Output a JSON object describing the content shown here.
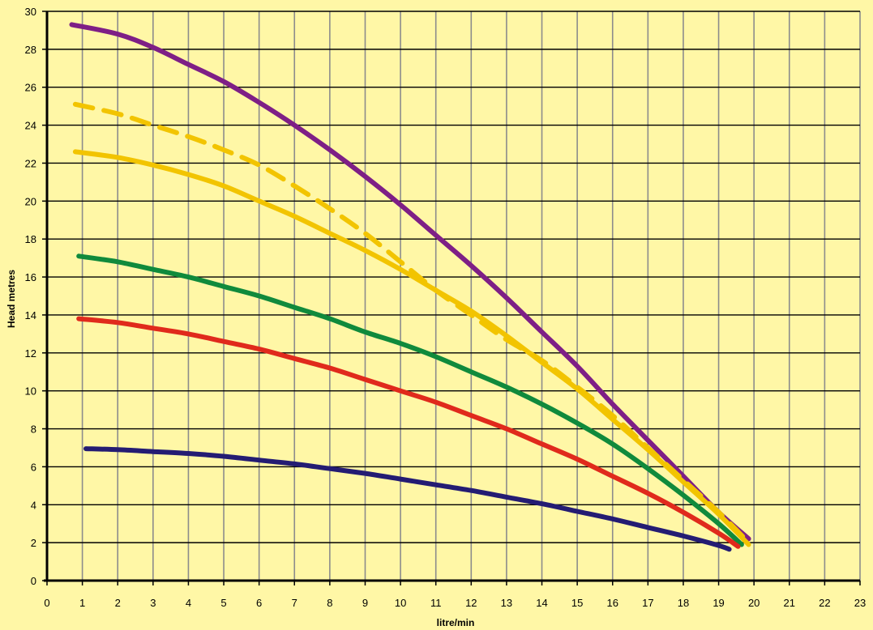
{
  "chart_data": {
    "type": "line",
    "title": "",
    "xlabel": "litre/min",
    "ylabel": "Head metres",
    "xlim": [
      0,
      23
    ],
    "ylim": [
      0,
      30
    ],
    "x_ticks": [
      0,
      1,
      2,
      3,
      4,
      5,
      6,
      7,
      8,
      9,
      10,
      11,
      12,
      13,
      14,
      15,
      16,
      17,
      18,
      19,
      20,
      21,
      22,
      23
    ],
    "y_ticks": [
      0,
      2,
      4,
      6,
      8,
      10,
      12,
      14,
      16,
      18,
      20,
      22,
      24,
      26,
      28,
      30
    ],
    "grid": true,
    "legend": "none",
    "colors": {
      "background": "#FFF7A6",
      "grid_vertical": "#8C8C8C",
      "grid_horizontal": "#000000"
    },
    "series": [
      {
        "color": "#7E1F86",
        "dash": false,
        "x": [
          0.7,
          2,
          3,
          4,
          5,
          6,
          7,
          8,
          9,
          10,
          11,
          12,
          13,
          14,
          15,
          16,
          17,
          18,
          19,
          19.85
        ],
        "y": [
          29.3,
          28.8,
          28.1,
          27.2,
          26.3,
          25.2,
          24.0,
          22.7,
          21.3,
          19.8,
          18.2,
          16.6,
          14.9,
          13.1,
          11.3,
          9.3,
          7.4,
          5.5,
          3.6,
          2.2
        ]
      },
      {
        "color": "#F2C400",
        "dash": true,
        "x": [
          0.8,
          2,
          3,
          4,
          5,
          6,
          7,
          8,
          9,
          10,
          11,
          12,
          13,
          14,
          15,
          16,
          17,
          18,
          19,
          19.85
        ],
        "y": [
          25.1,
          24.6,
          24.0,
          23.4,
          22.7,
          21.9,
          20.8,
          19.6,
          18.3,
          16.8,
          15.3,
          14.0,
          12.7,
          11.6,
          10.2,
          8.7,
          7.0,
          5.3,
          3.6,
          2.0
        ]
      },
      {
        "color": "#F2C400",
        "dash": false,
        "x": [
          0.8,
          2,
          3,
          4,
          5,
          6,
          7,
          8,
          9,
          10,
          11,
          12,
          13,
          14,
          15,
          16,
          17,
          18,
          19,
          19.85
        ],
        "y": [
          22.6,
          22.3,
          21.9,
          21.4,
          20.8,
          20.0,
          19.2,
          18.3,
          17.4,
          16.4,
          15.3,
          14.2,
          12.9,
          11.5,
          10.1,
          8.5,
          6.9,
          5.2,
          3.5,
          1.9
        ]
      },
      {
        "color": "#108A3C",
        "dash": false,
        "x": [
          0.9,
          2,
          3,
          4,
          5,
          6,
          7,
          8,
          9,
          10,
          11,
          12,
          13,
          14,
          15,
          16,
          17,
          18,
          19,
          19.65
        ],
        "y": [
          17.1,
          16.8,
          16.4,
          16.0,
          15.5,
          15.0,
          14.4,
          13.8,
          13.1,
          12.5,
          11.8,
          11.0,
          10.2,
          9.3,
          8.3,
          7.2,
          5.9,
          4.5,
          3.0,
          1.9
        ]
      },
      {
        "color": "#E02A1C",
        "dash": false,
        "x": [
          0.9,
          2,
          3,
          4,
          5,
          6,
          7,
          8,
          9,
          10,
          11,
          12,
          13,
          14,
          15,
          16,
          17,
          18,
          19,
          19.55
        ],
        "y": [
          13.8,
          13.6,
          13.3,
          13.0,
          12.6,
          12.2,
          11.7,
          11.2,
          10.6,
          10.0,
          9.4,
          8.7,
          8.0,
          7.2,
          6.4,
          5.5,
          4.6,
          3.6,
          2.5,
          1.8
        ]
      },
      {
        "color": "#241C73",
        "dash": false,
        "x": [
          1.1,
          2,
          3,
          4,
          5,
          6,
          7,
          8,
          9,
          10,
          11,
          12,
          13,
          14,
          15,
          16,
          17,
          18,
          19,
          19.3
        ],
        "y": [
          6.95,
          6.9,
          6.8,
          6.7,
          6.55,
          6.35,
          6.15,
          5.9,
          5.65,
          5.35,
          5.05,
          4.75,
          4.4,
          4.05,
          3.65,
          3.25,
          2.8,
          2.35,
          1.85,
          1.65
        ]
      }
    ]
  }
}
